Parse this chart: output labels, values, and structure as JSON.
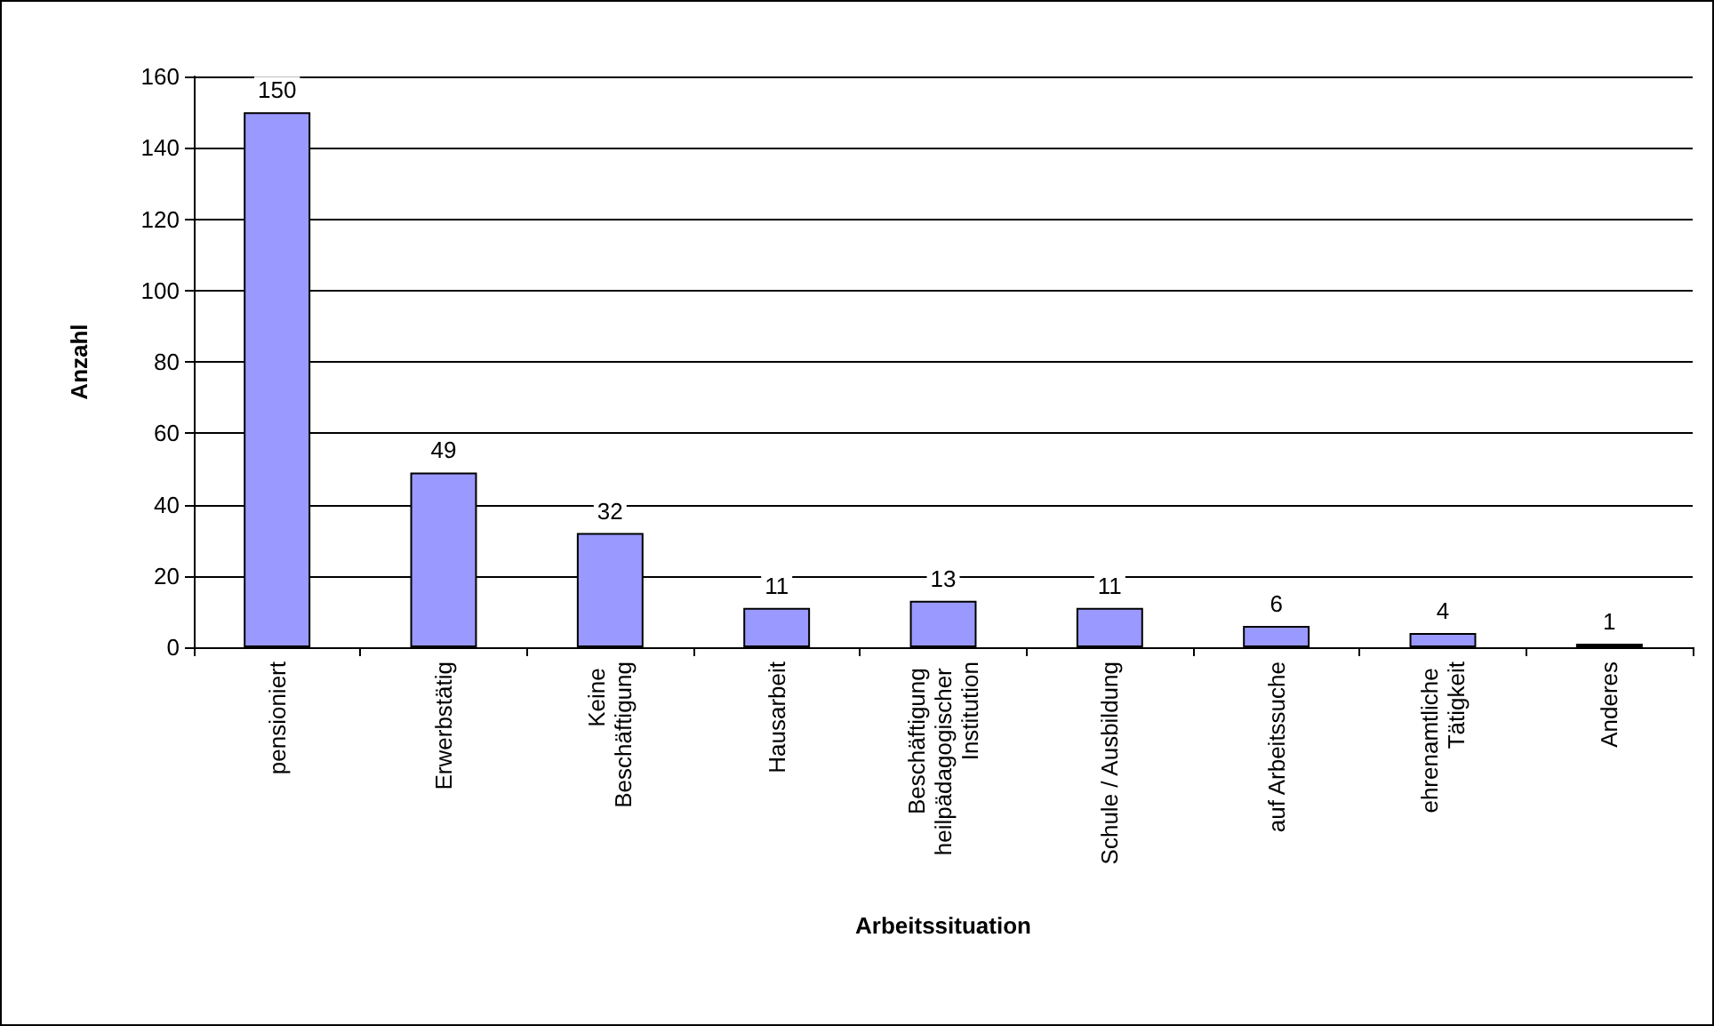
{
  "chart_data": {
    "type": "bar",
    "xlabel": "Arbeitssituation",
    "ylabel": "Anzahl",
    "categories": [
      "pensioniert",
      "Erwerbstätig",
      "Keine Beschäftigung",
      "Hausarbeit",
      "Beschäftigung heilpädagogischer Institution",
      "Schule / Ausbildung",
      "auf Arbeitssuche",
      "ehrenamtliche Tätigkeit",
      "Anderes"
    ],
    "values": [
      150,
      49,
      32,
      11,
      13,
      11,
      6,
      4,
      1
    ],
    "color": "#9999ff",
    "ylim": [
      0,
      160
    ],
    "yticks": [
      0,
      20,
      40,
      60,
      80,
      100,
      120,
      140,
      160
    ],
    "grid": "y",
    "data_labels": true
  }
}
